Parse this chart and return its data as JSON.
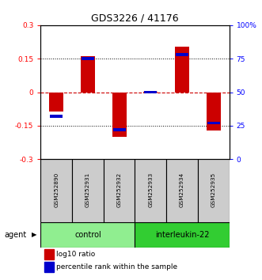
{
  "title": "GDS3226 / 41176",
  "samples": [
    "GSM252890",
    "GSM252931",
    "GSM252932",
    "GSM252933",
    "GSM252934",
    "GSM252935"
  ],
  "log10_ratio": [
    -0.085,
    0.16,
    -0.2,
    0.003,
    0.205,
    -0.17
  ],
  "percentile_rank": [
    32,
    75,
    22,
    50,
    78,
    27
  ],
  "groups": [
    {
      "label": "control",
      "color": "#90ee90",
      "start": 0,
      "end": 3
    },
    {
      "label": "interleukin-22",
      "color": "#32cd32",
      "start": 3,
      "end": 6
    }
  ],
  "ylim": [
    -0.3,
    0.3
  ],
  "yticks_left": [
    -0.3,
    -0.15,
    0,
    0.15,
    0.3
  ],
  "yticks_right": [
    0,
    25,
    50,
    75,
    100
  ],
  "bar_color": "#cc0000",
  "percentile_color": "#0000cc",
  "hline_color": "#cc0000",
  "grid_color": "#000000",
  "background_color": "#ffffff",
  "title_fontsize": 9,
  "agent_label": "agent",
  "legend_items": [
    {
      "color": "#cc0000",
      "label": "log10 ratio"
    },
    {
      "color": "#0000cc",
      "label": "percentile rank within the sample"
    }
  ]
}
